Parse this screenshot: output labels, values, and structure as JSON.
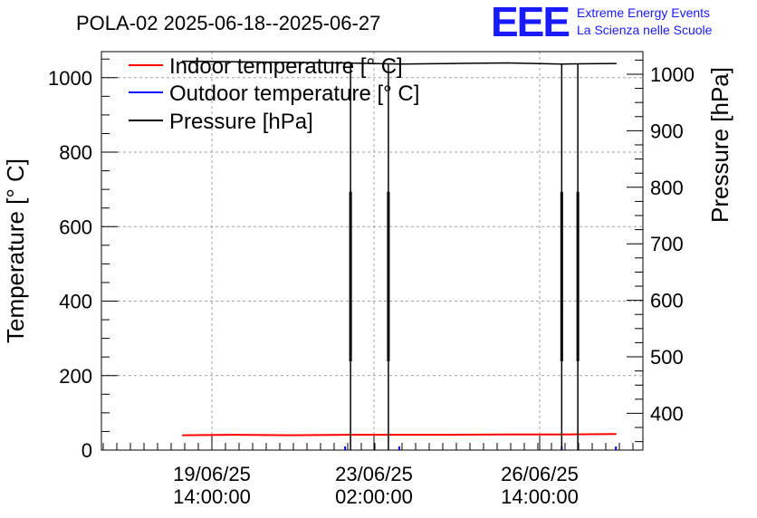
{
  "chart_data": {
    "type": "line",
    "title": "POLA-02 2025-06-18--2025-06-27",
    "xlabel": "",
    "ylabel": "Temperature [° C]",
    "y2label": "Pressure [hPa]",
    "ylim": [
      0,
      1070
    ],
    "y2lim": [
      335,
      1040
    ],
    "x_ticks": [
      {
        "line1": "19/06/25",
        "line2": "14:00:00"
      },
      {
        "line1": "23/06/25",
        "line2": "02:00:00"
      },
      {
        "line1": "26/06/25",
        "line2": "14:00:00"
      }
    ],
    "y_ticks": [
      "0",
      "200",
      "400",
      "600",
      "800",
      "1000"
    ],
    "y2_ticks": [
      "400",
      "500",
      "600",
      "700",
      "800",
      "900",
      "1000"
    ],
    "grid": true,
    "legend_position": "top-left",
    "series": [
      {
        "name": "Indoor temperature [° C]",
        "color": "#ff0000",
        "axis": "left",
        "x": [
          "2025-06-19",
          "2025-06-20",
          "2025-06-21",
          "2025-06-22",
          "2025-06-23",
          "2025-06-24",
          "2025-06-25",
          "2025-06-26",
          "2025-06-27"
        ],
        "y": [
          40,
          41,
          40,
          41,
          41,
          41,
          42,
          42,
          43
        ]
      },
      {
        "name": "Outdoor temperature [° C]",
        "color": "#0000ff",
        "axis": "left",
        "x": [
          "2025-06-22",
          "2025-06-23",
          "2025-06-26",
          "2025-06-27"
        ],
        "y": [
          0,
          0,
          0,
          0
        ]
      },
      {
        "name": "Pressure [hPa]",
        "color": "#000000",
        "axis": "right",
        "x": [
          "2025-06-19",
          "2025-06-20",
          "2025-06-21",
          "2025-06-22",
          "2025-06-23",
          "2025-06-24",
          "2025-06-25",
          "2025-06-26",
          "2025-06-27"
        ],
        "y": [
          1023,
          1022,
          1021,
          1020,
          1018,
          1019,
          1020,
          1018,
          1019
        ]
      }
    ]
  },
  "logo": {
    "mark": "EEE",
    "line1": "Extreme Energy Events",
    "line2": "La Scienza nelle Scuole"
  }
}
